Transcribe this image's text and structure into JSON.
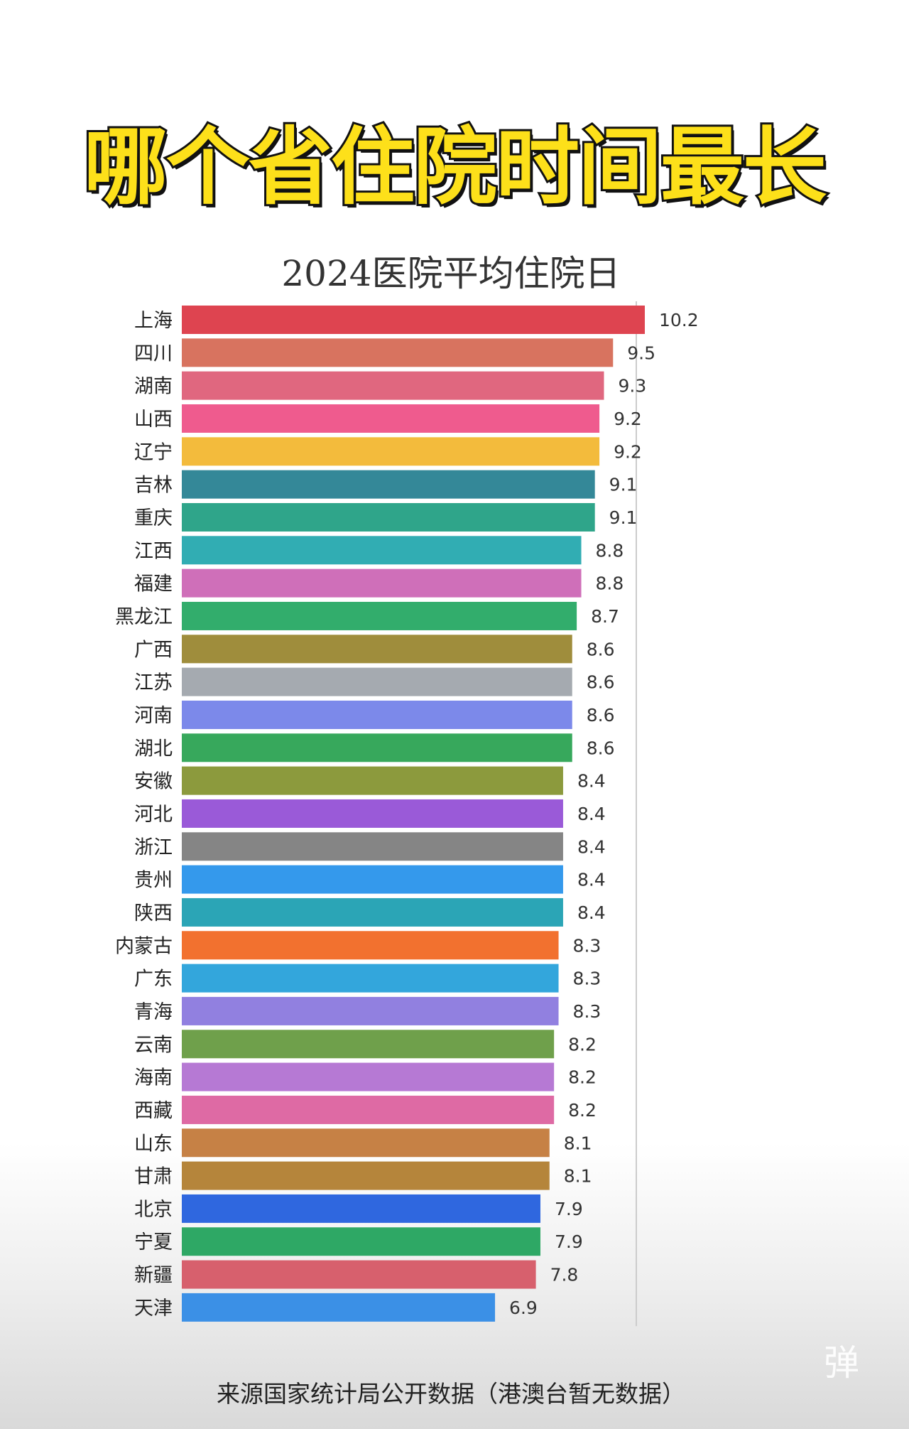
{
  "headline": "哪个省住院时间最长",
  "footer": {
    "source": "来源国家统计局公开数据（港澳台暂无数据）",
    "watermark": "弹"
  },
  "chart_data": {
    "type": "bar",
    "orientation": "horizontal",
    "title": "2024医院平均住院日",
    "xlabel": "",
    "ylabel": "",
    "xlim": [
      0,
      10.2
    ],
    "grid": false,
    "legend": "none",
    "categories": [
      "上海",
      "四川",
      "湖南",
      "山西",
      "辽宁",
      "吉林",
      "重庆",
      "江西",
      "福建",
      "黑龙江",
      "广西",
      "江苏",
      "河南",
      "湖北",
      "安徽",
      "河北",
      "浙江",
      "贵州",
      "陕西",
      "内蒙古",
      "广东",
      "青海",
      "云南",
      "海南",
      "西藏",
      "山东",
      "甘肃",
      "北京",
      "宁夏",
      "新疆",
      "天津"
    ],
    "values": [
      10.2,
      9.5,
      9.3,
      9.2,
      9.2,
      9.1,
      9.1,
      8.8,
      8.8,
      8.7,
      8.6,
      8.6,
      8.6,
      8.6,
      8.4,
      8.4,
      8.4,
      8.4,
      8.4,
      8.3,
      8.3,
      8.3,
      8.2,
      8.2,
      8.2,
      8.1,
      8.1,
      7.9,
      7.9,
      7.8,
      6.9
    ],
    "value_labels": [
      "10.2",
      "9.5",
      "9.3",
      "9.2",
      "9.2",
      "9.1",
      "9.1",
      "8.8",
      "8.8",
      "8.7",
      "8.6",
      "8.6",
      "8.6",
      "8.6",
      "8.4",
      "8.4",
      "8.4",
      "8.4",
      "8.4",
      "8.3",
      "8.3",
      "8.3",
      "8.2",
      "8.2",
      "8.2",
      "8.1",
      "8.1",
      "7.9",
      "7.9",
      "7.8",
      "6.9"
    ],
    "colors": [
      "#de4450",
      "#d8735f",
      "#e0677f",
      "#ef5b8e",
      "#f3bb3c",
      "#348898",
      "#2fa58a",
      "#31adb3",
      "#cf6fb9",
      "#32ad6c",
      "#9f8d3c",
      "#a5aab0",
      "#7c89ea",
      "#37a85c",
      "#8c9a3d",
      "#9a5ad8",
      "#858585",
      "#3499ec",
      "#2ba5b6",
      "#f2712f",
      "#33a6dc",
      "#9180e0",
      "#6fa04b",
      "#b679d4",
      "#de6aa4",
      "#c68145",
      "#b5853b",
      "#2f67df",
      "#2ea865",
      "#d7606d",
      "#3b90e6"
    ]
  }
}
